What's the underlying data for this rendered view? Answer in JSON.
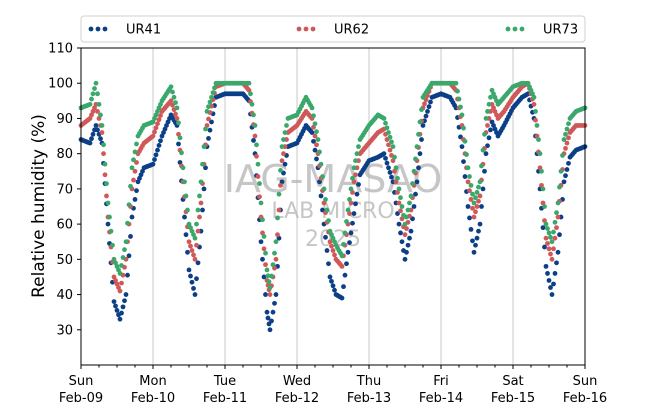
{
  "chart_data": {
    "type": "scatter",
    "ylabel": "Relative humidity (%)",
    "ylim": [
      20,
      110
    ],
    "yticks": [
      30,
      40,
      50,
      60,
      70,
      80,
      90,
      100,
      110
    ],
    "xlim": [
      "2025-02-09",
      "2025-02-16"
    ],
    "xticks": [
      {
        "date": "2025-02-09",
        "day": "Sun",
        "label": "Feb-09"
      },
      {
        "date": "2025-02-10",
        "day": "Mon",
        "label": "Feb-10"
      },
      {
        "date": "2025-02-11",
        "day": "Tue",
        "label": "Feb-11"
      },
      {
        "date": "2025-02-12",
        "day": "Wed",
        "label": "Feb-12"
      },
      {
        "date": "2025-02-13",
        "day": "Thu",
        "label": "Feb-13"
      },
      {
        "date": "2025-02-14",
        "day": "Fri",
        "label": "Feb-14"
      },
      {
        "date": "2025-02-15",
        "day": "Sat",
        "label": "Feb-15"
      },
      {
        "date": "2025-02-16",
        "day": "Sun",
        "label": "Feb-16"
      }
    ],
    "grid": "vertical",
    "legend_position": "top",
    "watermark": [
      "IAG-MASAO",
      "LAB MICRO",
      "2025"
    ],
    "series": [
      {
        "name": "UR41",
        "color": "#0b3f87",
        "points": [
          [
            "2025-02-09T00:00",
            84
          ],
          [
            "2025-02-09T03:00",
            83
          ],
          [
            "2025-02-09T05:00",
            88
          ],
          [
            "2025-02-09T07:00",
            83
          ],
          [
            "2025-02-09T09:00",
            60
          ],
          [
            "2025-02-09T11:00",
            38
          ],
          [
            "2025-02-09T13:00",
            33
          ],
          [
            "2025-02-09T15:00",
            40
          ],
          [
            "2025-02-09T17:00",
            62
          ],
          [
            "2025-02-09T19:00",
            72
          ],
          [
            "2025-02-09T21:00",
            76
          ],
          [
            "2025-02-10T00:00",
            77
          ],
          [
            "2025-02-10T03:00",
            85
          ],
          [
            "2025-02-10T06:00",
            91
          ],
          [
            "2025-02-10T08:00",
            88
          ],
          [
            "2025-02-10T10:00",
            67
          ],
          [
            "2025-02-10T12:00",
            47
          ],
          [
            "2025-02-10T14:00",
            40
          ],
          [
            "2025-02-10T16:00",
            58
          ],
          [
            "2025-02-10T18:00",
            82
          ],
          [
            "2025-02-10T21:00",
            96
          ],
          [
            "2025-02-11T00:00",
            97
          ],
          [
            "2025-02-11T03:00",
            97
          ],
          [
            "2025-02-11T06:00",
            97
          ],
          [
            "2025-02-11T08:00",
            95
          ],
          [
            "2025-02-11T10:00",
            80
          ],
          [
            "2025-02-11T12:00",
            55
          ],
          [
            "2025-02-11T14:00",
            35
          ],
          [
            "2025-02-11T15:00",
            30
          ],
          [
            "2025-02-11T17:00",
            40
          ],
          [
            "2025-02-11T19:00",
            72
          ],
          [
            "2025-02-11T21:00",
            82
          ],
          [
            "2025-02-12T00:00",
            83
          ],
          [
            "2025-02-12T03:00",
            88
          ],
          [
            "2025-02-12T05:00",
            86
          ],
          [
            "2025-02-12T07:00",
            76
          ],
          [
            "2025-02-12T09:00",
            60
          ],
          [
            "2025-02-12T11:00",
            45
          ],
          [
            "2025-02-12T13:00",
            40
          ],
          [
            "2025-02-12T15:00",
            39
          ],
          [
            "2025-02-12T17:00",
            52
          ],
          [
            "2025-02-12T19:00",
            63
          ],
          [
            "2025-02-12T21:00",
            74
          ],
          [
            "2025-02-13T00:00",
            78
          ],
          [
            "2025-02-13T03:00",
            79
          ],
          [
            "2025-02-13T05:00",
            80
          ],
          [
            "2025-02-13T08:00",
            72
          ],
          [
            "2025-02-13T10:00",
            60
          ],
          [
            "2025-02-13T12:00",
            50
          ],
          [
            "2025-02-13T14:00",
            58
          ],
          [
            "2025-02-13T16:00",
            72
          ],
          [
            "2025-02-13T18:00",
            88
          ],
          [
            "2025-02-13T21:00",
            96
          ],
          [
            "2025-02-14T00:00",
            97
          ],
          [
            "2025-02-14T03:00",
            96
          ],
          [
            "2025-02-14T05:00",
            93
          ],
          [
            "2025-02-14T07:00",
            82
          ],
          [
            "2025-02-14T09:00",
            65
          ],
          [
            "2025-02-14T11:00",
            52
          ],
          [
            "2025-02-14T13:00",
            60
          ],
          [
            "2025-02-14T15:00",
            80
          ],
          [
            "2025-02-14T17:00",
            89
          ],
          [
            "2025-02-14T19:00",
            85
          ],
          [
            "2025-02-14T21:00",
            88
          ],
          [
            "2025-02-15T00:00",
            93
          ],
          [
            "2025-02-15T03:00",
            96
          ],
          [
            "2025-02-15T05:00",
            97
          ],
          [
            "2025-02-15T07:00",
            90
          ],
          [
            "2025-02-15T09:00",
            70
          ],
          [
            "2025-02-15T11:00",
            48
          ],
          [
            "2025-02-15T13:00",
            40
          ],
          [
            "2025-02-15T15:00",
            52
          ],
          [
            "2025-02-15T17:00",
            72
          ],
          [
            "2025-02-15T19:00",
            79
          ],
          [
            "2025-02-15T21:00",
            81
          ],
          [
            "2025-02-16T00:00",
            82
          ]
        ]
      },
      {
        "name": "UR62",
        "color": "#d05858",
        "points": [
          [
            "2025-02-09T00:00",
            88
          ],
          [
            "2025-02-09T03:00",
            90
          ],
          [
            "2025-02-09T05:00",
            94
          ],
          [
            "2025-02-09T07:00",
            86
          ],
          [
            "2025-02-09T09:00",
            62
          ],
          [
            "2025-02-09T11:00",
            45
          ],
          [
            "2025-02-09T13:00",
            41
          ],
          [
            "2025-02-09T15:00",
            50
          ],
          [
            "2025-02-09T17:00",
            70
          ],
          [
            "2025-02-09T19:00",
            80
          ],
          [
            "2025-02-09T21:00",
            83
          ],
          [
            "2025-02-10T00:00",
            85
          ],
          [
            "2025-02-10T03:00",
            92
          ],
          [
            "2025-02-10T06:00",
            95
          ],
          [
            "2025-02-10T08:00",
            90
          ],
          [
            "2025-02-10T10:00",
            72
          ],
          [
            "2025-02-10T12:00",
            55
          ],
          [
            "2025-02-10T14:00",
            50
          ],
          [
            "2025-02-10T16:00",
            66
          ],
          [
            "2025-02-10T18:00",
            88
          ],
          [
            "2025-02-10T21:00",
            99
          ],
          [
            "2025-02-11T00:00",
            100
          ],
          [
            "2025-02-11T03:00",
            100
          ],
          [
            "2025-02-11T06:00",
            100
          ],
          [
            "2025-02-11T08:00",
            98
          ],
          [
            "2025-02-11T10:00",
            85
          ],
          [
            "2025-02-11T12:00",
            62
          ],
          [
            "2025-02-11T14:00",
            44
          ],
          [
            "2025-02-11T15:00",
            40
          ],
          [
            "2025-02-11T17:00",
            50
          ],
          [
            "2025-02-11T19:00",
            78
          ],
          [
            "2025-02-11T21:00",
            86
          ],
          [
            "2025-02-12T00:00",
            88
          ],
          [
            "2025-02-12T03:00",
            92
          ],
          [
            "2025-02-12T05:00",
            90
          ],
          [
            "2025-02-12T07:00",
            80
          ],
          [
            "2025-02-12T09:00",
            66
          ],
          [
            "2025-02-12T11:00",
            55
          ],
          [
            "2025-02-12T13:00",
            50
          ],
          [
            "2025-02-12T15:00",
            48
          ],
          [
            "2025-02-12T17:00",
            60
          ],
          [
            "2025-02-12T19:00",
            72
          ],
          [
            "2025-02-12T21:00",
            80
          ],
          [
            "2025-02-13T00:00",
            83
          ],
          [
            "2025-02-13T03:00",
            86
          ],
          [
            "2025-02-13T05:00",
            87
          ],
          [
            "2025-02-13T08:00",
            78
          ],
          [
            "2025-02-13T10:00",
            66
          ],
          [
            "2025-02-13T12:00",
            57
          ],
          [
            "2025-02-13T14:00",
            64
          ],
          [
            "2025-02-13T16:00",
            78
          ],
          [
            "2025-02-13T18:00",
            93
          ],
          [
            "2025-02-13T21:00",
            100
          ],
          [
            "2025-02-14T00:00",
            100
          ],
          [
            "2025-02-14T03:00",
            100
          ],
          [
            "2025-02-14T05:00",
            98
          ],
          [
            "2025-02-14T07:00",
            88
          ],
          [
            "2025-02-14T09:00",
            72
          ],
          [
            "2025-02-14T11:00",
            62
          ],
          [
            "2025-02-14T13:00",
            68
          ],
          [
            "2025-02-14T15:00",
            86
          ],
          [
            "2025-02-14T17:00",
            94
          ],
          [
            "2025-02-14T19:00",
            90
          ],
          [
            "2025-02-14T21:00",
            92
          ],
          [
            "2025-02-15T00:00",
            96
          ],
          [
            "2025-02-15T03:00",
            99
          ],
          [
            "2025-02-15T05:00",
            100
          ],
          [
            "2025-02-15T07:00",
            94
          ],
          [
            "2025-02-15T09:00",
            76
          ],
          [
            "2025-02-15T11:00",
            56
          ],
          [
            "2025-02-15T13:00",
            50
          ],
          [
            "2025-02-15T15:00",
            62
          ],
          [
            "2025-02-15T17:00",
            80
          ],
          [
            "2025-02-15T19:00",
            86
          ],
          [
            "2025-02-15T21:00",
            88
          ],
          [
            "2025-02-16T00:00",
            88
          ]
        ]
      },
      {
        "name": "UR73",
        "color": "#3aa86b",
        "points": [
          [
            "2025-02-09T00:00",
            93
          ],
          [
            "2025-02-09T03:00",
            94
          ],
          [
            "2025-02-09T05:00",
            100
          ],
          [
            "2025-02-09T07:00",
            88
          ],
          [
            "2025-02-09T09:00",
            66
          ],
          [
            "2025-02-09T11:00",
            50
          ],
          [
            "2025-02-09T13:00",
            46
          ],
          [
            "2025-02-09T15:00",
            55
          ],
          [
            "2025-02-09T17:00",
            76
          ],
          [
            "2025-02-09T19:00",
            85
          ],
          [
            "2025-02-09T21:00",
            88
          ],
          [
            "2025-02-10T00:00",
            89
          ],
          [
            "2025-02-10T03:00",
            95
          ],
          [
            "2025-02-10T06:00",
            99
          ],
          [
            "2025-02-10T08:00",
            93
          ],
          [
            "2025-02-10T10:00",
            76
          ],
          [
            "2025-02-10T12:00",
            60
          ],
          [
            "2025-02-10T14:00",
            56
          ],
          [
            "2025-02-10T16:00",
            72
          ],
          [
            "2025-02-10T18:00",
            92
          ],
          [
            "2025-02-10T21:00",
            100
          ],
          [
            "2025-02-11T00:00",
            100
          ],
          [
            "2025-02-11T03:00",
            100
          ],
          [
            "2025-02-11T06:00",
            100
          ],
          [
            "2025-02-11T08:00",
            100
          ],
          [
            "2025-02-11T10:00",
            88
          ],
          [
            "2025-02-11T12:00",
            66
          ],
          [
            "2025-02-11T14:00",
            47
          ],
          [
            "2025-02-11T15:00",
            42
          ],
          [
            "2025-02-11T17:00",
            55
          ],
          [
            "2025-02-11T19:00",
            82
          ],
          [
            "2025-02-11T21:00",
            90
          ],
          [
            "2025-02-12T00:00",
            91
          ],
          [
            "2025-02-12T03:00",
            96
          ],
          [
            "2025-02-12T05:00",
            93
          ],
          [
            "2025-02-12T07:00",
            84
          ],
          [
            "2025-02-12T09:00",
            70
          ],
          [
            "2025-02-12T11:00",
            58
          ],
          [
            "2025-02-12T13:00",
            54
          ],
          [
            "2025-02-12T15:00",
            51
          ],
          [
            "2025-02-12T17:00",
            64
          ],
          [
            "2025-02-12T19:00",
            76
          ],
          [
            "2025-02-12T21:00",
            84
          ],
          [
            "2025-02-13T00:00",
            88
          ],
          [
            "2025-02-13T03:00",
            91
          ],
          [
            "2025-02-13T05:00",
            90
          ],
          [
            "2025-02-13T08:00",
            82
          ],
          [
            "2025-02-13T10:00",
            70
          ],
          [
            "2025-02-13T12:00",
            60
          ],
          [
            "2025-02-13T14:00",
            68
          ],
          [
            "2025-02-13T16:00",
            82
          ],
          [
            "2025-02-13T18:00",
            96
          ],
          [
            "2025-02-13T21:00",
            100
          ],
          [
            "2025-02-14T00:00",
            100
          ],
          [
            "2025-02-14T03:00",
            100
          ],
          [
            "2025-02-14T05:00",
            100
          ],
          [
            "2025-02-14T07:00",
            91
          ],
          [
            "2025-02-14T09:00",
            76
          ],
          [
            "2025-02-14T11:00",
            66
          ],
          [
            "2025-02-14T13:00",
            72
          ],
          [
            "2025-02-14T15:00",
            90
          ],
          [
            "2025-02-14T17:00",
            98
          ],
          [
            "2025-02-14T19:00",
            94
          ],
          [
            "2025-02-14T21:00",
            96
          ],
          [
            "2025-02-15T00:00",
            99
          ],
          [
            "2025-02-15T03:00",
            100
          ],
          [
            "2025-02-15T05:00",
            100
          ],
          [
            "2025-02-15T07:00",
            96
          ],
          [
            "2025-02-15T09:00",
            80
          ],
          [
            "2025-02-15T11:00",
            60
          ],
          [
            "2025-02-15T13:00",
            55
          ],
          [
            "2025-02-15T15:00",
            66
          ],
          [
            "2025-02-15T17:00",
            84
          ],
          [
            "2025-02-15T19:00",
            90
          ],
          [
            "2025-02-15T21:00",
            92
          ],
          [
            "2025-02-16T00:00",
            93
          ]
        ]
      }
    ]
  }
}
